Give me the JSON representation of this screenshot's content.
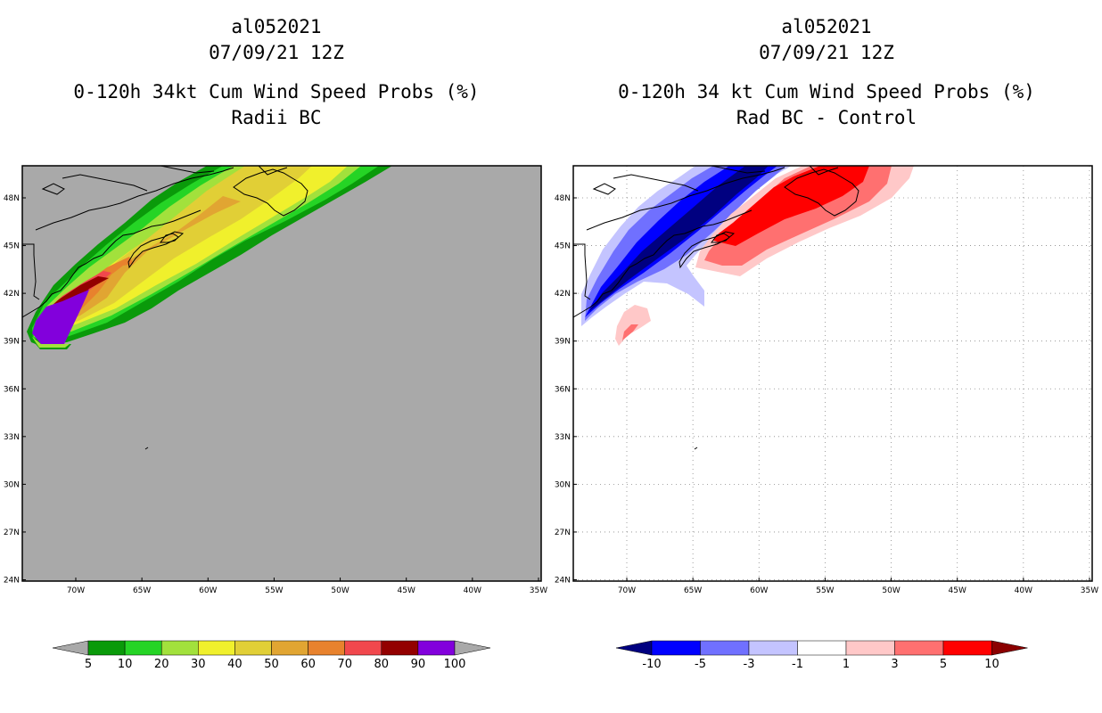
{
  "left_panel": {
    "storm_id": "al052021",
    "datetime": "07/09/21 12Z",
    "product": "0-120h 34kt Cum Wind Speed Probs (%)",
    "subtitle": "Radii BC",
    "background_color": "#a9a9a9",
    "lat_labels": [
      "48N",
      "45N",
      "42N",
      "39N",
      "36N",
      "33N",
      "30N",
      "27N",
      "24N"
    ],
    "lon_labels": [
      "70W",
      "65W",
      "60W",
      "55W",
      "50W",
      "45W",
      "40W",
      "35W"
    ],
    "colorbar": {
      "labels": [
        "5",
        "10",
        "20",
        "30",
        "40",
        "50",
        "60",
        "70",
        "80",
        "90",
        "100"
      ],
      "colors": [
        "#0a9a0a",
        "#25d425",
        "#a2e13c",
        "#f0f02c",
        "#e1cf36",
        "#e1a532",
        "#e8822d",
        "#f1484d",
        "#930000",
        "#8200dc"
      ]
    }
  },
  "right_panel": {
    "storm_id": "al052021",
    "datetime": "07/09/21 12Z",
    "product": "0-120h 34 kt Cum Wind Speed Probs (%)",
    "subtitle": "Rad BC - Control",
    "background_color": "#ffffff",
    "lat_labels": [
      "48N",
      "45N",
      "42N",
      "39N",
      "36N",
      "33N",
      "30N",
      "27N",
      "24N"
    ],
    "lon_labels": [
      "70W",
      "65W",
      "60W",
      "55W",
      "50W",
      "45W",
      "40W",
      "35W"
    ],
    "colorbar": {
      "labels": [
        "-10",
        "-5",
        "-3",
        "-1",
        "1",
        "3",
        "5",
        "10"
      ],
      "colors": [
        "#0000ff",
        "#7070ff",
        "#c4c4ff",
        "#ffffff",
        "#ffc8c8",
        "#ff7070",
        "#ff0000"
      ],
      "low_arrow_color": "#000080",
      "high_arrow_color": "#8b0000"
    }
  }
}
